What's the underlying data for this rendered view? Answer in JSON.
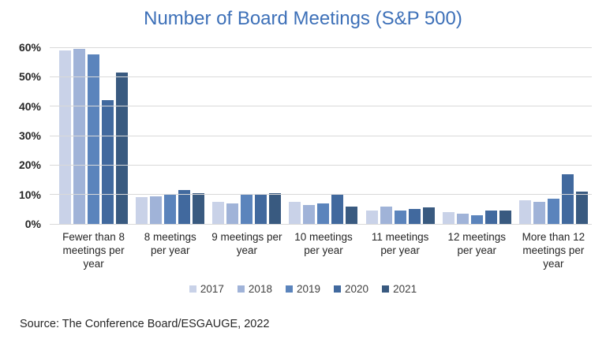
{
  "title": "Number of Board Meetings (S&P 500)",
  "source": "Source: The Conference Board/ESGAUGE, 2022",
  "colors": {
    "title_blue": "#3D70B8",
    "text": "#262626",
    "gridline": "#D9D9D9"
  },
  "chart_data": {
    "type": "bar",
    "title": "Number of Board Meetings (S&P 500)",
    "categories": [
      "Fewer than 8 meetings per year",
      "8 meetings per year",
      "9 meetings per year",
      "10 meetings per year",
      "11 meetings per year",
      "12 meetings per year",
      "More than 12 meetings per year"
    ],
    "category_lines": [
      [
        "Fewer than 8",
        "meetings per",
        "year"
      ],
      [
        "8 meetings",
        "per year"
      ],
      [
        "9 meetings per",
        "year"
      ],
      [
        "10 meetings",
        "per year"
      ],
      [
        "11 meetings",
        "per year"
      ],
      [
        "12 meetings",
        "per year"
      ],
      [
        "More than 12",
        "meetings per",
        "year"
      ]
    ],
    "series": [
      {
        "name": "2017",
        "color": "#C9D2E8",
        "values": [
          59,
          9,
          7.5,
          7.5,
          4.5,
          4,
          8
        ]
      },
      {
        "name": "2018",
        "color": "#A0B3D8",
        "values": [
          59.5,
          9.5,
          7,
          6.5,
          6,
          3.5,
          7.5
        ]
      },
      {
        "name": "2019",
        "color": "#5B84BC",
        "values": [
          57.5,
          10,
          10,
          7,
          4.5,
          3,
          8.5
        ]
      },
      {
        "name": "2020",
        "color": "#41699E",
        "values": [
          42,
          11.5,
          10,
          10,
          5,
          4.5,
          17
        ]
      },
      {
        "name": "2021",
        "color": "#395A80",
        "values": [
          51.5,
          10.5,
          10.5,
          6,
          5.5,
          4.5,
          11
        ]
      }
    ],
    "xlabel": "",
    "ylabel": "",
    "ylim": [
      0,
      60
    ],
    "ytick_step": 10,
    "ytick_format": "percent",
    "grid": true,
    "legend_position": "bottom"
  }
}
